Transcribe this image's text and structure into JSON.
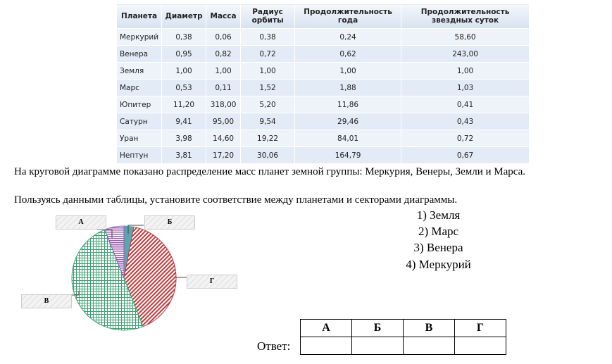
{
  "table": {
    "headers": [
      "Планета",
      "Диаметр",
      "Масса",
      "Радиус орбиты",
      "Продолжительность года",
      "Продолжительность звездных суток"
    ],
    "rows": [
      [
        "Меркурий",
        "0,38",
        "0,06",
        "0,38",
        "0,24",
        "58,60"
      ],
      [
        "Венера",
        "0,95",
        "0,82",
        "0,72",
        "0,62",
        "243,00"
      ],
      [
        "Земля",
        "1,00",
        "1,00",
        "1,00",
        "1,00",
        "1,00"
      ],
      [
        "Марс",
        "0,53",
        "0,11",
        "1,52",
        "1,88",
        "1,03"
      ],
      [
        "Юпитер",
        "11,20",
        "318,00",
        "5,20",
        "11,86",
        "0,41"
      ],
      [
        "Сатурн",
        "9,41",
        "95,00",
        "9,54",
        "29,46",
        "0,43"
      ],
      [
        "Уран",
        "3,98",
        "14,60",
        "19,22",
        "84,01",
        "0,72"
      ],
      [
        "Нептун",
        "3,81",
        "17,20",
        "30,06",
        "164,79",
        "0,67"
      ]
    ]
  },
  "text": {
    "line1": "На круговой диаграмме показано распределение масс планет земной группы: Меркурия, Венеры, Земли и Марса.",
    "line2": "Пользуясь данными таблицы, установите соответствие между планетами и секторами диаграммы."
  },
  "options": [
    "1) Земля",
    "2) Марс",
    "3) Венера",
    "4) Меркурий"
  ],
  "answer": {
    "label": "Ответ:",
    "columns": [
      "А",
      "Б",
      "В",
      "Г"
    ]
  },
  "chart_data": {
    "type": "pie",
    "labels": [
      "Б",
      "Г",
      "В",
      "А"
    ],
    "values": [
      3,
      41,
      50,
      6
    ],
    "colors": [
      "#5aa6b0",
      "#c0393b",
      "#3aa070",
      "#9a5ab0"
    ]
  }
}
